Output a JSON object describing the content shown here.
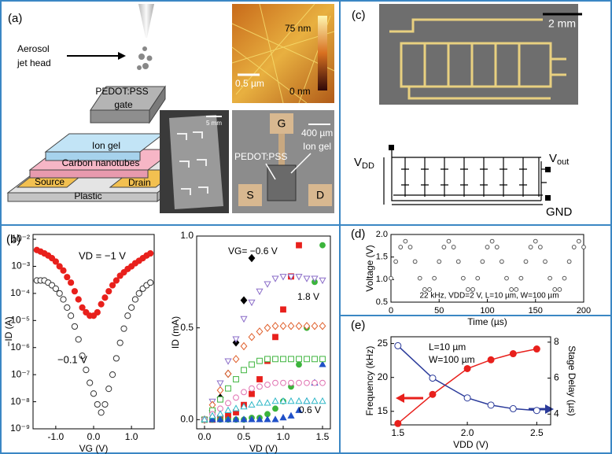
{
  "panels": {
    "a": {
      "label": "(a)",
      "aerosol": [
        "Aerosol",
        "jet head"
      ],
      "gate": [
        "PEDOT:PSS",
        "gate"
      ],
      "ion_gel": "Ion gel",
      "cnt": "Carbon nanotubes",
      "source": "Source",
      "drain": "Drain",
      "plastic": "Plastic",
      "photo_scale": "5 mm",
      "afm_max": "75 nm",
      "afm_min": "0 nm",
      "afm_scale": "0.5 µm",
      "pad_g": "G",
      "device_scale": "400 µm",
      "device_pedot": "PEDOT:PSS",
      "device_ion_gel": "Ion gel",
      "pad_s": "S",
      "pad_d": "D"
    },
    "b": {
      "label": "(b)"
    },
    "c": {
      "label": "(c)",
      "scale": "2 mm",
      "vdd": {
        "main": "V",
        "sub": "DD"
      },
      "vout": {
        "main": "V",
        "sub": "out"
      },
      "gnd": "GND"
    },
    "d": {
      "label": "(d)"
    },
    "e": {
      "label": "(e)"
    }
  },
  "chart_data": [
    {
      "type": "scatter",
      "log_y": true,
      "xlabel": "VG (V)",
      "ylabel": "−ID (A)",
      "xlim": [
        -1.6,
        1.6
      ],
      "xticks": [
        {
          "value": -1,
          "label": "-1.0"
        },
        {
          "value": 0,
          "label": "0.0"
        },
        {
          "value": 1,
          "label": "1.0"
        }
      ],
      "ylim": [
        1e-09,
        0.015
      ],
      "yticks": [
        {
          "value": 1e-09,
          "label": "10⁻⁹"
        },
        {
          "value": 1e-08,
          "label": "10⁻⁸"
        },
        {
          "value": 1e-07,
          "label": "10⁻⁷"
        },
        {
          "value": 1e-06,
          "label": "10⁻⁶"
        },
        {
          "value": 1e-05,
          "label": "10⁻⁵"
        },
        {
          "value": 0.0001,
          "label": "10⁻⁴"
        },
        {
          "value": 0.001,
          "label": "10⁻³"
        },
        {
          "value": 0.01,
          "label": "10⁻²"
        }
      ],
      "x": [
        -1.5,
        -1.4,
        -1.3,
        -1.2,
        -1.1,
        -1.0,
        -0.9,
        -0.8,
        -0.7,
        -0.6,
        -0.5,
        -0.4,
        -0.3,
        -0.2,
        -0.1,
        0,
        0.1,
        0.2,
        0.3,
        0.4,
        0.5,
        0.6,
        0.7,
        0.8,
        0.9,
        1.0,
        1.1,
        1.2,
        1.3,
        1.4,
        1.5
      ],
      "series": [
        {
          "name": "VD = −1 V",
          "color": "#e8201c",
          "marker": "circle",
          "filled": true,
          "values": [
            0.004,
            0.0035,
            0.003,
            0.0025,
            0.002,
            0.0015,
            0.001,
            0.0007,
            0.0004,
            0.00025,
            0.00012,
            6e-05,
            3e-05,
            2e-05,
            1.5e-05,
            1.5e-05,
            2e-05,
            4e-05,
            7e-05,
            0.00012,
            0.0002,
            0.0003,
            0.00045,
            0.0006,
            0.0008,
            0.001,
            0.0013,
            0.0016,
            0.002,
            0.0025,
            0.003
          ]
        },
        {
          "name": "−0.1 V",
          "color": "#333333",
          "marker": "circle",
          "filled": false,
          "values": [
            0.0003,
            0.0003,
            0.0003,
            0.00025,
            0.0002,
            0.00015,
            0.0001,
            6e-05,
            3e-05,
            1.5e-05,
            6e-06,
            2e-06,
            5e-07,
            1.5e-07,
            5e-08,
            2e-08,
            8e-09,
            4e-09,
            8e-09,
            3e-08,
            1e-07,
            4e-07,
            1.5e-06,
            5e-06,
            1.5e-05,
            3e-05,
            6e-05,
            0.0001,
            0.00015,
            0.0002,
            0.00025
          ]
        }
      ]
    },
    {
      "type": "scatter",
      "xlabel": "VD (V)",
      "ylabel": "ID (mA)",
      "xlim": [
        -0.1,
        1.6
      ],
      "xticks": [
        {
          "value": 0,
          "label": "0.0"
        },
        0.5,
        {
          "value": 1,
          "label": "1.0"
        },
        1.5
      ],
      "ylim": [
        -0.05,
        1.0
      ],
      "yticks": [
        {
          "value": 0,
          "label": "0.0"
        },
        0.5,
        {
          "value": 1,
          "label": "1.0"
        }
      ],
      "annotations": [
        "VG= −0.6 V",
        "1.8 V",
        "0.6 V"
      ],
      "x": [
        0,
        0.1,
        0.2,
        0.3,
        0.4,
        0.5,
        0.6,
        0.7,
        0.8,
        0.9,
        1.0,
        1.1,
        1.2,
        1.3,
        1.4,
        1.5
      ],
      "series": [
        {
          "color": "#000000",
          "marker": "diamond",
          "filled": true,
          "values": [
            0,
            0.05,
            0.12,
            0.25,
            0.42,
            0.65,
            0.88,
            null,
            null,
            null,
            null,
            null,
            null,
            null,
            null,
            null
          ]
        },
        {
          "color": "#e8201c",
          "marker": "square",
          "filled": true,
          "values": [
            0,
            0,
            0.01,
            0.02,
            0.04,
            0.08,
            0.14,
            0.22,
            0.32,
            0.45,
            0.6,
            0.78,
            0.95,
            null,
            null,
            null
          ]
        },
        {
          "color": "#3cb43c",
          "marker": "circle",
          "filled": true,
          "values": [
            0,
            0,
            0,
            0,
            0,
            0,
            0.01,
            0.01,
            0.03,
            0.06,
            0.1,
            0.18,
            0.3,
            0.5,
            0.75,
            0.95
          ]
        },
        {
          "color": "#2050c8",
          "marker": "triangle",
          "filled": true,
          "values": [
            0,
            0,
            0,
            0,
            0,
            0,
            0,
            0,
            0,
            0,
            0.01,
            0.02,
            0.05,
            0.1,
            0.2,
            0.3
          ]
        },
        {
          "color": "#8a6cc8",
          "marker": "triangle-down",
          "filled": false,
          "values": [
            0,
            0.1,
            0.2,
            0.32,
            0.44,
            0.55,
            0.64,
            0.7,
            0.74,
            0.77,
            0.78,
            0.78,
            0.78,
            0.77,
            0.77,
            0.76
          ]
        },
        {
          "color": "#e0602c",
          "marker": "diamond",
          "filled": false,
          "values": [
            0,
            0.08,
            0.16,
            0.25,
            0.33,
            0.4,
            0.45,
            0.48,
            0.5,
            0.51,
            0.51,
            0.51,
            0.51,
            0.51,
            0.51,
            0.51
          ]
        },
        {
          "color": "#3cb43c",
          "marker": "square",
          "filled": false,
          "values": [
            0,
            0.05,
            0.11,
            0.17,
            0.22,
            0.27,
            0.3,
            0.32,
            0.33,
            0.33,
            0.33,
            0.33,
            0.33,
            0.33,
            0.33,
            0.33
          ]
        },
        {
          "color": "#e070b0",
          "marker": "circle",
          "filled": false,
          "values": [
            0,
            0.03,
            0.06,
            0.09,
            0.12,
            0.15,
            0.17,
            0.18,
            0.19,
            0.2,
            0.2,
            0.2,
            0.2,
            0.2,
            0.2,
            0.2
          ]
        },
        {
          "color": "#30b8c8",
          "marker": "triangle",
          "filled": false,
          "values": [
            0,
            0.02,
            0.03,
            0.05,
            0.06,
            0.07,
            0.08,
            0.09,
            0.09,
            0.1,
            0.1,
            0.1,
            0.1,
            0.1,
            0.1,
            0.1
          ]
        }
      ]
    },
    {
      "type": "scatter",
      "xlabel": "Time (µs)",
      "ylabel": "Voltage (V)",
      "xlim": [
        0,
        200
      ],
      "xticks": [
        0,
        50,
        100,
        150,
        200
      ],
      "ylim": [
        0.5,
        2.0
      ],
      "yticks": [
        0.5,
        {
          "value": 1,
          "label": "1.0"
        },
        1.5,
        {
          "value": 2,
          "label": "2.0"
        }
      ],
      "annotations": [
        "22 kHz, VDD=2 V, L=10 µm, W=100 µm"
      ],
      "x": [
        0,
        5,
        10,
        15,
        20,
        25,
        30,
        35,
        40,
        45,
        50,
        55,
        60,
        65,
        70,
        75,
        80,
        85,
        90,
        95,
        100,
        105,
        110,
        115,
        120,
        125,
        130,
        135,
        140,
        145,
        150,
        155,
        160,
        165,
        170,
        175,
        180,
        185,
        190,
        195,
        200
      ],
      "series": [
        {
          "color": "#555555",
          "marker": "circle",
          "filled": false,
          "values": [
            1.03,
            1.4,
            1.72,
            1.85,
            1.72,
            1.4,
            1.03,
            0.78,
            0.78,
            1.03,
            1.4,
            1.72,
            1.85,
            1.72,
            1.4,
            1.03,
            0.78,
            0.78,
            1.03,
            1.4,
            1.72,
            1.85,
            1.72,
            1.4,
            1.03,
            0.78,
            0.78,
            1.03,
            1.4,
            1.72,
            1.85,
            1.72,
            1.4,
            1.03,
            0.78,
            0.78,
            1.03,
            1.4,
            1.72,
            1.85,
            1.72
          ]
        }
      ]
    },
    {
      "type": "line",
      "xlabel": "VDD (V)",
      "ylabel": "Frequency (kHz)",
      "y2label": "Stage Delay (µs)",
      "xlim": [
        1.45,
        2.6
      ],
      "xticks": [
        1.5,
        {
          "value": 2,
          "label": "2.0"
        },
        2.5
      ],
      "ylim": [
        13,
        26
      ],
      "yticks": [
        15,
        20,
        25
      ],
      "y2lim": [
        3.4,
        8.3
      ],
      "y2ticks": [
        4,
        6,
        8
      ],
      "annotations": [
        "L=10 µm",
        "W=100 µm"
      ],
      "x": [
        1.5,
        1.75,
        2.0,
        2.17,
        2.33,
        2.5
      ],
      "series": [
        {
          "color": "#e8201c",
          "marker": "circle",
          "filled": true,
          "line": true,
          "values": [
            13.2,
            17.5,
            21.3,
            22.6,
            23.5,
            24.2
          ]
        },
        {
          "color": "#2a3a9a",
          "marker": "circle",
          "filled": false,
          "line": true,
          "axis": "y2",
          "values": [
            7.8,
            6.0,
            4.9,
            4.5,
            4.3,
            4.2
          ]
        }
      ]
    }
  ]
}
